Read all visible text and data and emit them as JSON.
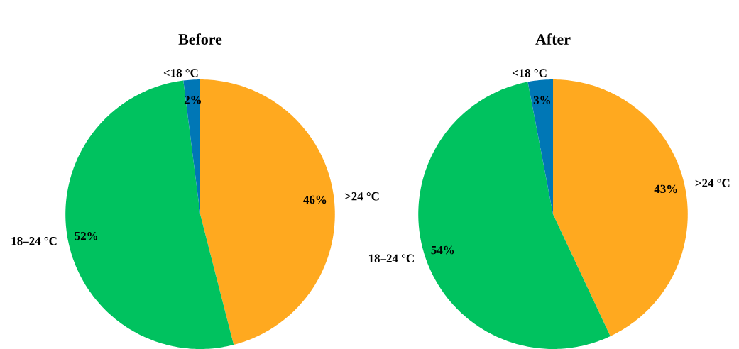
{
  "chart_data": [
    {
      "type": "pie",
      "title": "Before",
      "categories": [
        ">24 °C",
        "18–24 °C",
        "<18 °C"
      ],
      "values": [
        46,
        52,
        2
      ],
      "colors": [
        "#ffa91f",
        "#00c25f",
        "#0077b6"
      ],
      "value_labels": [
        "46%",
        "52%",
        "2%"
      ]
    },
    {
      "type": "pie",
      "title": "After",
      "categories": [
        ">24 °C",
        "18–24 °C",
        "<18 °C"
      ],
      "values": [
        43,
        54,
        3
      ],
      "colors": [
        "#ffa91f",
        "#00c25f",
        "#0077b6"
      ],
      "value_labels": [
        "43%",
        "54%",
        "3%"
      ]
    }
  ]
}
